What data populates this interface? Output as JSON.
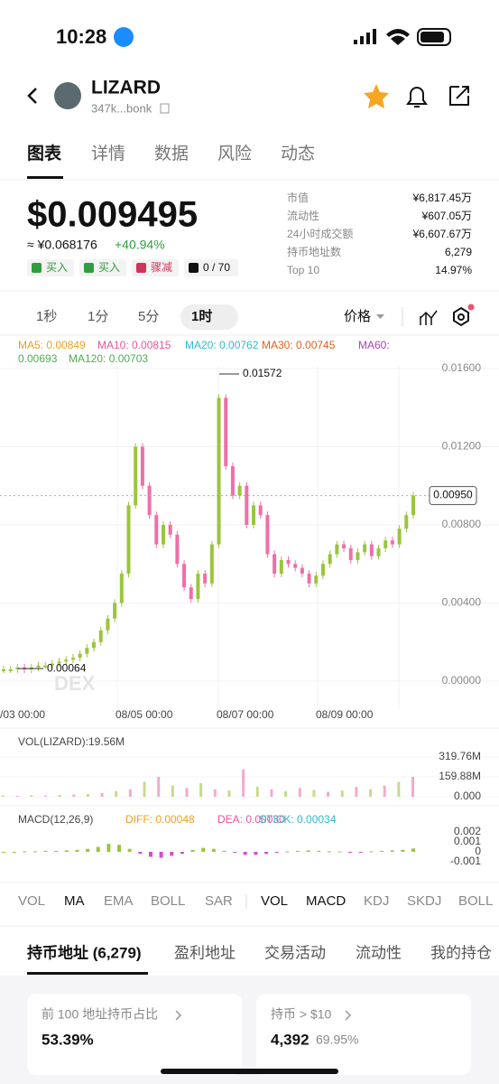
{
  "status_bar": {
    "time": "10:28"
  },
  "header": {
    "title": "LIZARD",
    "address": "347k...bonk"
  },
  "tabs": [
    "图表",
    "详情",
    "数据",
    "风险",
    "动态"
  ],
  "price": {
    "value": "$0.009495",
    "cny": "≈ ¥0.068176",
    "change": "+40.94%"
  },
  "actions": [
    "买入",
    "买入",
    "骤减",
    "0 / 70"
  ],
  "stats": [
    {
      "label": "市值",
      "value": "¥6,817.45万"
    },
    {
      "label": "流动性",
      "value": "¥607.05万"
    },
    {
      "label": "24小时成交额",
      "value": "¥6,607.67万"
    },
    {
      "label": "持币地址数",
      "value": "6,279"
    },
    {
      "label": "Top 10",
      "value": "14.97%"
    }
  ],
  "timeframes": [
    "1秒",
    "1分",
    "5分",
    "1时"
  ],
  "price_type": "价格",
  "ma_legend": [
    "MA5: 0.00849",
    "MA10: 0.00815",
    "MA20: 0.00762",
    "MA30: 0.00745",
    "MA60:",
    "0.00693",
    "MA120: 0.00703"
  ],
  "ma_colors": [
    "#f0a020",
    "#e8559a",
    "#30b8d0",
    "#e06020",
    "#b040c0",
    "#4caf50",
    "#4caf50"
  ],
  "price_chart": {
    "type": "candlestick",
    "ylim": [
      0,
      0.016
    ],
    "yticks": [
      {
        "value": 0.016,
        "label": "0.01600"
      },
      {
        "value": 0.012,
        "label": "0.01200"
      },
      {
        "value": 0.008,
        "label": "0.00800"
      },
      {
        "value": 0.004,
        "label": "0.00400"
      },
      {
        "value": 0,
        "label": "0.00000"
      }
    ],
    "xlabels": [
      "/03 00:00",
      "08/05 00:00",
      "08/07 00:00",
      "08/09 00:00"
    ],
    "up_color": "#9bc53d",
    "down_color": "#f06fa8",
    "close": [
      0.0006,
      0.0006,
      0.0007,
      0.0006,
      0.0007,
      0.0008,
      0.0008,
      0.0009,
      0.001,
      0.0011,
      0.0012,
      0.0014,
      0.0017,
      0.002,
      0.0026,
      0.0032,
      0.004,
      0.0055,
      0.009,
      0.012,
      0.01,
      0.0085,
      0.007,
      0.008,
      0.0075,
      0.006,
      0.0048,
      0.0042,
      0.0055,
      0.005,
      0.007,
      0.0145,
      0.011,
      0.0095,
      0.01,
      0.008,
      0.009,
      0.0085,
      0.0065,
      0.0055,
      0.0062,
      0.006,
      0.0058,
      0.0055,
      0.005,
      0.0054,
      0.006,
      0.0065,
      0.007,
      0.0068,
      0.0062,
      0.0066,
      0.007,
      0.0064,
      0.0068,
      0.0072,
      0.007,
      0.0078,
      0.0085,
      0.0095
    ],
    "high_label": 0.01572,
    "low_label": 0.00064,
    "current": {
      "value": 0.0095,
      "label": "0.00950"
    },
    "watermark": "DEX"
  },
  "volume_chart": {
    "title": "VOL(LIZARD):19.56M",
    "ylim": [
      0,
      319.76
    ],
    "yticks": [
      {
        "value": 319.76,
        "label": "319.76M"
      },
      {
        "value": 159.88,
        "label": "159.88M"
      },
      {
        "value": 0,
        "label": "0.000"
      }
    ],
    "values": [
      10,
      8,
      12,
      9,
      14,
      18,
      22,
      30,
      45,
      60,
      120,
      160,
      90,
      70,
      110,
      60,
      50,
      220,
      80,
      60,
      45,
      70,
      55,
      40,
      50,
      80,
      60,
      90,
      120,
      160
    ]
  },
  "macd_chart": {
    "title": "MACD(12,26,9)",
    "legend": [
      "DIFF: 0.00048",
      "DEA: 0.00030",
      "STICK: 0.00034"
    ],
    "legend_colors": [
      "#f0a020",
      "#e8559a",
      "#30b8d0"
    ],
    "ylim": [
      -0.0012,
      0.0022
    ],
    "yticks": [
      0.002,
      0.001,
      0,
      -0.001
    ],
    "values": [
      0,
      0,
      5e-05,
      5e-05,
      0.0001,
      0.0001,
      0.00015,
      0.0002,
      0.0003,
      0.0005,
      0.0008,
      0.0007,
      0.0003,
      -0.0002,
      -0.0005,
      -0.0006,
      -0.0004,
      -0.0002,
      0.0002,
      0.0004,
      0.0003,
      0.0001,
      -0.0001,
      -0.0003,
      -0.0003,
      -0.0002,
      -0.0001,
      5e-05,
      0.0001,
      0.00015,
      0.0001,
      5e-05,
      5e-05,
      -5e-05,
      -0.0001,
      5e-05,
      0.0001,
      0.00015,
      0.0002,
      0.00034
    ]
  },
  "indicators": [
    "VOL",
    "MA",
    "EMA",
    "BOLL",
    "SAR",
    "VOL",
    "MACD",
    "KDJ",
    "SKDJ",
    "BOLL"
  ],
  "bottom_tabs": [
    "持币地址 (6,279)",
    "盈利地址",
    "交易活动",
    "流动性",
    "我的持仓"
  ],
  "cards": [
    {
      "title": "前 100 地址持币占比",
      "value": "53.39%"
    },
    {
      "title": "持币 > $10",
      "value": "4,392",
      "sub": "69.95%"
    }
  ]
}
